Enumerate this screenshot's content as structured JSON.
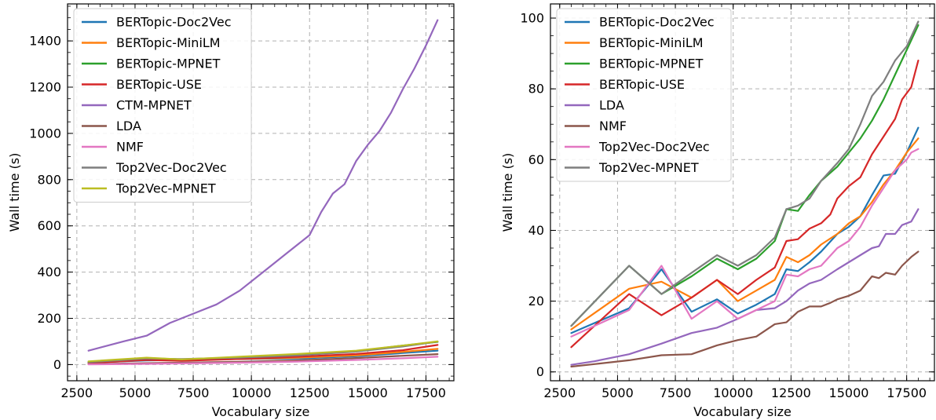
{
  "chart_data": [
    {
      "type": "line",
      "title": "",
      "xlabel": "Vocabulary size",
      "ylabel": "Wall time (s)",
      "xlim": [
        2100,
        18700
      ],
      "ylim": [
        -70,
        1560
      ],
      "x_ticks": [
        "2500",
        "5000",
        "7500",
        "10000",
        "12500",
        "15000",
        "17500"
      ],
      "y_ticks": [
        "0",
        "200",
        "400",
        "600",
        "800",
        "1000",
        "1200",
        "1400"
      ],
      "grid": true,
      "legend_position": "top-left",
      "series": [
        {
          "name": "BERTopic-Doc2Vec",
          "color": "#1f77b4",
          "x": [
            3000,
            5500,
            7000,
            9500,
            12000,
            14500,
            16500,
            18000
          ],
          "y": [
            8,
            18,
            20,
            24,
            26,
            36,
            50,
            60
          ]
        },
        {
          "name": "BERTopic-MiniLM",
          "color": "#ff7f0e",
          "x": [
            3000,
            5500,
            7000,
            9500,
            12000,
            14500,
            16500,
            18000
          ],
          "y": [
            10,
            22,
            20,
            24,
            30,
            40,
            55,
            68
          ]
        },
        {
          "name": "BERTopic-MPNET",
          "color": "#2ca02c",
          "x": [
            3000,
            5500,
            7000,
            9500,
            12000,
            14500,
            16500,
            18000
          ],
          "y": [
            10,
            28,
            22,
            30,
            44,
            58,
            82,
            98
          ]
        },
        {
          "name": "BERTopic-USE",
          "color": "#d62728",
          "x": [
            3000,
            5500,
            7000,
            9500,
            12000,
            14500,
            16500,
            18000
          ],
          "y": [
            6,
            20,
            16,
            24,
            34,
            46,
            62,
            85
          ]
        },
        {
          "name": "CTM-MPNET",
          "color": "#9467bd",
          "x": [
            3000,
            4500,
            5500,
            6500,
            7500,
            8500,
            9500,
            10500,
            11500,
            12500,
            13000,
            13500,
            14000,
            14500,
            15000,
            15500,
            16000,
            16500,
            17000,
            17500,
            18000
          ],
          "y": [
            60,
            100,
            125,
            180,
            220,
            260,
            320,
            400,
            480,
            560,
            660,
            740,
            780,
            880,
            950,
            1010,
            1090,
            1190,
            1280,
            1380,
            1490
          ]
        },
        {
          "name": "LDA",
          "color": "#8c564b",
          "x": [
            3000,
            5500,
            7000,
            9500,
            12000,
            14500,
            16500,
            18000
          ],
          "y": [
            2,
            6,
            8,
            12,
            18,
            28,
            38,
            45
          ]
        },
        {
          "name": "NMF",
          "color": "#e377c2",
          "x": [
            3000,
            5500,
            7000,
            9500,
            12000,
            14500,
            16500,
            18000
          ],
          "y": [
            1,
            3,
            5,
            8,
            13,
            20,
            27,
            34
          ]
        },
        {
          "name": "Top2Vec-Doc2Vec",
          "color": "#7f7f7f",
          "x": [
            3000,
            5500,
            7000,
            9500,
            12000,
            14500,
            16500,
            18000
          ],
          "y": [
            10,
            26,
            24,
            30,
            40,
            56,
            78,
            99
          ]
        },
        {
          "name": "Top2Vec-MPNET",
          "color": "#bcbd22",
          "x": [
            3000,
            5500,
            7000,
            9500,
            12000,
            14500,
            16500,
            18000
          ],
          "y": [
            14,
            30,
            22,
            34,
            46,
            60,
            82,
            100
          ]
        }
      ]
    },
    {
      "type": "line",
      "title": "",
      "xlabel": "Vocabulary size",
      "ylabel": "Wall time (s)",
      "xlim": [
        2100,
        18700
      ],
      "ylim": [
        -2.5,
        104
      ],
      "x_ticks": [
        "2500",
        "5000",
        "7500",
        "10000",
        "12500",
        "15000",
        "17500"
      ],
      "y_ticks": [
        "0",
        "20",
        "40",
        "60",
        "80",
        "100"
      ],
      "grid": true,
      "legend_position": "top-left",
      "series": [
        {
          "name": "BERTopic-Doc2Vec",
          "color": "#1f77b4",
          "x": [
            3000,
            5500,
            6900,
            8200,
            9300,
            10200,
            11000,
            11800,
            12300,
            12800,
            13300,
            13800,
            14500,
            15000,
            15500,
            16000,
            16500,
            17000,
            17500,
            18000
          ],
          "y": [
            11,
            18,
            29,
            17,
            20.5,
            16.5,
            19,
            22,
            29,
            28.5,
            31,
            34,
            39,
            41,
            44,
            50,
            55.5,
            56,
            62,
            69
          ]
        },
        {
          "name": "BERTopic-MiniLM",
          "color": "#ff7f0e",
          "x": [
            3000,
            5500,
            6900,
            8200,
            9300,
            10200,
            11000,
            11800,
            12300,
            12800,
            13300,
            13800,
            14500,
            15000,
            15500,
            16000,
            16500,
            17000,
            17500,
            18000
          ],
          "y": [
            12,
            23.5,
            25.5,
            21,
            26,
            20,
            23,
            26,
            32.5,
            31,
            33,
            36,
            39,
            42,
            44,
            48,
            53,
            57,
            62,
            66
          ]
        },
        {
          "name": "BERTopic-MPNET",
          "color": "#2ca02c",
          "x": [
            3000,
            5500,
            6900,
            8200,
            9300,
            10200,
            11000,
            11800,
            12300,
            12800,
            13300,
            13800,
            14500,
            15000,
            15500,
            16000,
            16500,
            17000,
            17500,
            18000
          ],
          "y": [
            13,
            30,
            22,
            27,
            32,
            29,
            32,
            37,
            46,
            45.5,
            50,
            54,
            58,
            62,
            66,
            71,
            77,
            84,
            91,
            98
          ]
        },
        {
          "name": "BERTopic-USE",
          "color": "#d62728",
          "x": [
            3000,
            5500,
            6900,
            8200,
            9300,
            10200,
            11000,
            11800,
            12300,
            12800,
            13300,
            13800,
            14200,
            14500,
            15000,
            15500,
            16000,
            16500,
            17000,
            17300,
            17700,
            18000
          ],
          "y": [
            7,
            22,
            16,
            21,
            26,
            22,
            26,
            29.5,
            37,
            37.5,
            40.5,
            42,
            44.5,
            49,
            52.5,
            55,
            61.5,
            66.5,
            71.5,
            77,
            80.5,
            88
          ]
        },
        {
          "name": "LDA",
          "color": "#9467bd",
          "x": [
            3000,
            4000,
            5500,
            6900,
            8200,
            9300,
            10200,
            11000,
            11800,
            12300,
            12800,
            13300,
            13800,
            14500,
            15000,
            15500,
            16000,
            16300,
            16600,
            17000,
            17300,
            17700,
            18000
          ],
          "y": [
            2,
            3,
            5,
            8,
            11,
            12.5,
            15,
            17.5,
            18,
            20,
            23,
            25,
            26,
            29,
            31,
            33,
            35,
            35.5,
            39,
            39,
            41.5,
            42.5,
            46
          ]
        },
        {
          "name": "NMF",
          "color": "#8c564b",
          "x": [
            3000,
            4000,
            5500,
            6900,
            8200,
            9300,
            10200,
            11000,
            11800,
            12300,
            12800,
            13300,
            13800,
            14200,
            14500,
            15000,
            15500,
            16000,
            16300,
            16600,
            17000,
            17300,
            17700,
            18000
          ],
          "y": [
            1.5,
            2.2,
            3.3,
            4.7,
            5,
            7.5,
            9,
            10,
            13.5,
            14,
            17,
            18.5,
            18.5,
            19.5,
            20.5,
            21.5,
            23,
            27,
            26.5,
            28,
            27.5,
            30,
            32.5,
            34
          ]
        },
        {
          "name": "Top2Vec-Doc2Vec",
          "color": "#e377c2",
          "x": [
            3000,
            5500,
            6900,
            8200,
            9300,
            10200,
            11000,
            11800,
            12300,
            12800,
            13300,
            13800,
            14500,
            15000,
            15500,
            16000,
            16500,
            17000,
            17500,
            17700,
            18000
          ],
          "y": [
            10,
            17.5,
            30,
            15,
            20,
            15,
            17.5,
            20,
            27.5,
            27,
            29,
            30,
            35,
            37,
            41,
            47,
            52,
            57,
            60,
            62,
            63
          ]
        },
        {
          "name": "Top2Vec-MPNET",
          "color": "#7f7f7f",
          "x": [
            3000,
            5500,
            6900,
            8200,
            9300,
            10200,
            11000,
            11800,
            12300,
            12800,
            13300,
            13800,
            14500,
            15000,
            15500,
            16000,
            16500,
            17000,
            17500,
            18000
          ],
          "y": [
            13,
            30,
            22,
            28,
            33,
            30,
            33,
            38,
            46,
            47,
            49,
            54,
            59,
            63,
            70,
            78,
            82,
            88,
            92,
            99
          ]
        }
      ]
    }
  ]
}
